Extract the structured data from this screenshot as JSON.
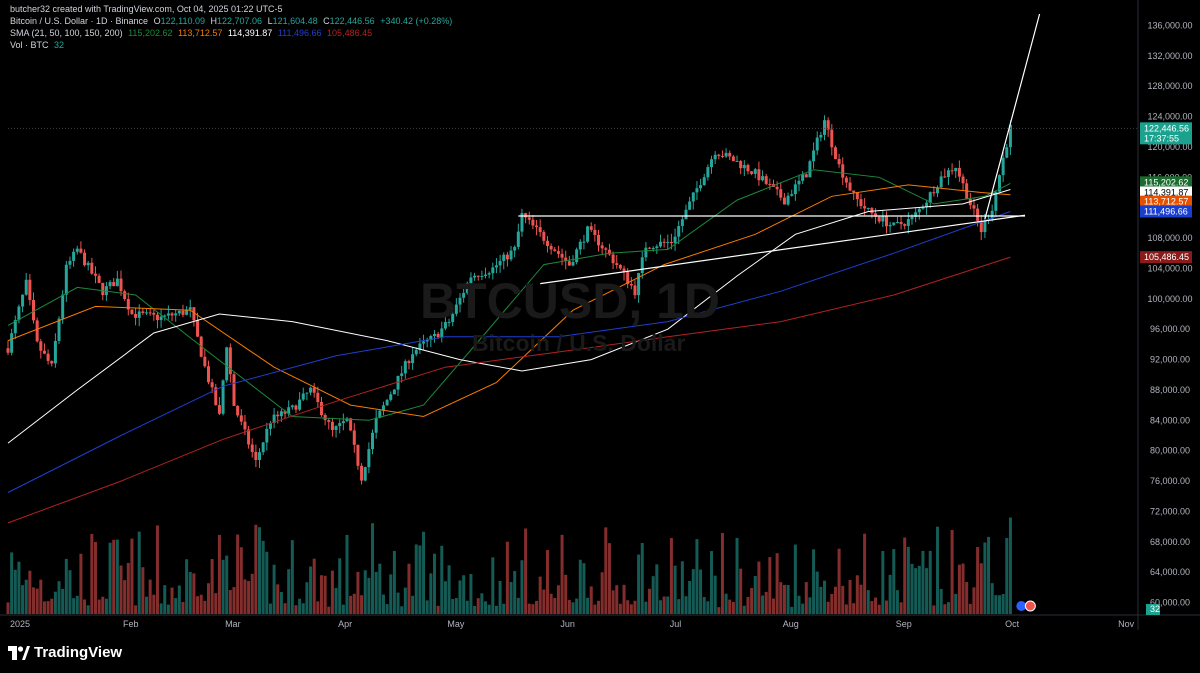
{
  "header": {
    "credit": "butcher32 created with TradingView.com, Oct 04, 2025 01:22 UTC-5",
    "symbol": "Bitcoin / U.S. Dollar · 1D · Binance",
    "ohlc": {
      "o_label": "O",
      "o": "122,110.09",
      "h_label": "H",
      "h": "122,707.06",
      "l_label": "L",
      "l": "121,604.48",
      "c_label": "C",
      "c": "122,446.56",
      "change": "+340.42 (+0.28%)"
    },
    "sma": {
      "label": "SMA (21, 50, 100, 150, 200)",
      "v21": "115,202.62",
      "v50": "113,712.57",
      "v100": "114,391.87",
      "v150": "111,496.66",
      "v200": "105,486.45"
    },
    "vol": {
      "label": "Vol · BTC",
      "value": "32"
    }
  },
  "watermark": {
    "symbol": "BTCUSD, 1D",
    "name": "Bitcoin / U.S. Dollar"
  },
  "brand": {
    "name": "TradingView"
  },
  "colors": {
    "up": "#26a69a",
    "down": "#ef5350",
    "sma21": "#1b8a3a",
    "sma50": "#f57c00",
    "sma100": "#ffffff",
    "sma150": "#1e3fd0",
    "sma200": "#b22222"
  },
  "price_tags": {
    "last": "122,446.56",
    "countdown": "17:37:55",
    "sma21": "115,202.62",
    "sma100": "114,391.87",
    "sma50": "113,712.57",
    "sma150": "111,496.66",
    "sma200": "105,486.45",
    "vol": "32"
  },
  "chart_data": {
    "type": "candlestick",
    "timeframe": "1D",
    "y_axis_ticks": [
      60000,
      64000,
      68000,
      72000,
      76000,
      80000,
      84000,
      88000,
      92000,
      96000,
      100000,
      104000,
      108000,
      112000,
      116000,
      120000,
      124000,
      128000,
      132000,
      136000
    ],
    "y_tick_labels": [
      "60,000.00",
      "64,000.00",
      "68,000.00",
      "72,000.00",
      "76,000.00",
      "80,000.00",
      "84,000.00",
      "88,000.00",
      "92,000.00",
      "96,000.00",
      "100,000.00",
      "104,000.00",
      "108,000.00",
      "112,000.00",
      "116,000.00",
      "120,000.00",
      "124,000.00",
      "128,000.00",
      "132,000.00",
      "136,000.00"
    ],
    "ylim": [
      58500,
      137500
    ],
    "x_axis_labels": [
      "2025",
      "Feb",
      "Mar",
      "Apr",
      "May",
      "Jun",
      "Jul",
      "Aug",
      "Sep",
      "Oct",
      "Nov"
    ],
    "x_axis_dates": [
      "2025-01-01",
      "2025-02-01",
      "2025-03-01",
      "2025-04-01",
      "2025-05-01",
      "2025-06-01",
      "2025-07-01",
      "2025-08-01",
      "2025-09-01",
      "2025-10-01",
      "2025-11-01"
    ],
    "xlim": [
      "2025-01-01",
      "2025-11-07"
    ],
    "price_path": [
      [
        "2025-01-01",
        93500
      ],
      [
        "2025-01-06",
        102000
      ],
      [
        "2025-01-09",
        94000
      ],
      [
        "2025-01-13",
        91000
      ],
      [
        "2025-01-17",
        104000
      ],
      [
        "2025-01-20",
        106500
      ],
      [
        "2025-01-27",
        101000
      ],
      [
        "2025-01-31",
        102500
      ],
      [
        "2025-02-04",
        98000
      ],
      [
        "2025-02-12",
        97500
      ],
      [
        "2025-02-20",
        98500
      ],
      [
        "2025-02-24",
        91000
      ],
      [
        "2025-02-28",
        84500
      ],
      [
        "2025-03-02",
        94000
      ],
      [
        "2025-03-04",
        86000
      ],
      [
        "2025-03-10",
        78500
      ],
      [
        "2025-03-14",
        84000
      ],
      [
        "2025-03-20",
        85500
      ],
      [
        "2025-03-25",
        88000
      ],
      [
        "2025-03-31",
        82500
      ],
      [
        "2025-04-04",
        84000
      ],
      [
        "2025-04-08",
        76500
      ],
      [
        "2025-04-12",
        84000
      ],
      [
        "2025-04-22",
        93000
      ],
      [
        "2025-04-28",
        95000
      ],
      [
        "2025-05-02",
        97000
      ],
      [
        "2025-05-08",
        103000
      ],
      [
        "2025-05-14",
        104000
      ],
      [
        "2025-05-20",
        106500
      ],
      [
        "2025-05-22",
        111000
      ],
      [
        "2025-05-28",
        108000
      ],
      [
        "2025-06-04",
        104500
      ],
      [
        "2025-06-09",
        109000
      ],
      [
        "2025-06-12",
        107500
      ],
      [
        "2025-06-17",
        104500
      ],
      [
        "2025-06-22",
        101000
      ],
      [
        "2025-06-25",
        107000
      ],
      [
        "2025-07-02",
        107500
      ],
      [
        "2025-07-10",
        115500
      ],
      [
        "2025-07-14",
        119500
      ],
      [
        "2025-07-20",
        118000
      ],
      [
        "2025-07-25",
        116500
      ],
      [
        "2025-08-02",
        113000
      ],
      [
        "2025-08-08",
        116500
      ],
      [
        "2025-08-13",
        123500
      ],
      [
        "2025-08-17",
        117500
      ],
      [
        "2025-08-21",
        113500
      ],
      [
        "2025-08-25",
        111500
      ],
      [
        "2025-09-01",
        109500
      ],
      [
        "2025-09-06",
        110500
      ],
      [
        "2025-09-10",
        113000
      ],
      [
        "2025-09-14",
        116000
      ],
      [
        "2025-09-18",
        117500
      ],
      [
        "2025-09-22",
        112500
      ],
      [
        "2025-09-25",
        109000
      ],
      [
        "2025-09-28",
        112000
      ],
      [
        "2025-10-01",
        118500
      ],
      [
        "2025-10-03",
        122500
      ]
    ],
    "series": [
      {
        "name": "SMA 21",
        "last": 115202.62,
        "values": [
          [
            "2025-01-01",
            96500
          ],
          [
            "2025-01-20",
            101500
          ],
          [
            "2025-02-05",
            100500
          ],
          [
            "2025-02-25",
            93000
          ],
          [
            "2025-03-20",
            84500
          ],
          [
            "2025-04-10",
            84000
          ],
          [
            "2025-04-25",
            86000
          ],
          [
            "2025-05-12",
            95500
          ],
          [
            "2025-05-28",
            104500
          ],
          [
            "2025-06-15",
            106000
          ],
          [
            "2025-07-01",
            106500
          ],
          [
            "2025-07-20",
            113000
          ],
          [
            "2025-08-10",
            117000
          ],
          [
            "2025-08-28",
            116000
          ],
          [
            "2025-09-12",
            112500
          ],
          [
            "2025-09-26",
            113500
          ],
          [
            "2025-10-03",
            115202
          ]
        ]
      },
      {
        "name": "SMA 50",
        "last": 113712.57,
        "values": [
          [
            "2025-01-01",
            94500
          ],
          [
            "2025-01-25",
            99000
          ],
          [
            "2025-02-20",
            98500
          ],
          [
            "2025-03-15",
            91000
          ],
          [
            "2025-04-05",
            86000
          ],
          [
            "2025-04-25",
            84500
          ],
          [
            "2025-05-15",
            89000
          ],
          [
            "2025-06-05",
            98500
          ],
          [
            "2025-06-30",
            104500
          ],
          [
            "2025-07-25",
            108500
          ],
          [
            "2025-08-15",
            113500
          ],
          [
            "2025-09-05",
            115000
          ],
          [
            "2025-09-25",
            114000
          ],
          [
            "2025-10-03",
            113712
          ]
        ]
      },
      {
        "name": "SMA 100",
        "last": 114391.87,
        "values": [
          [
            "2025-01-01",
            81000
          ],
          [
            "2025-01-20",
            88000
          ],
          [
            "2025-02-10",
            95500
          ],
          [
            "2025-02-28",
            98000
          ],
          [
            "2025-03-20",
            97000
          ],
          [
            "2025-04-15",
            94500
          ],
          [
            "2025-05-05",
            92000
          ],
          [
            "2025-05-22",
            90500
          ],
          [
            "2025-06-10",
            92000
          ],
          [
            "2025-07-01",
            96000
          ],
          [
            "2025-07-20",
            103000
          ],
          [
            "2025-08-05",
            108500
          ],
          [
            "2025-08-25",
            111500
          ],
          [
            "2025-09-20",
            112500
          ],
          [
            "2025-10-03",
            114392
          ]
        ]
      },
      {
        "name": "SMA 150",
        "last": 111496.66,
        "values": [
          [
            "2025-01-01",
            74500
          ],
          [
            "2025-02-01",
            82000
          ],
          [
            "2025-03-01",
            88500
          ],
          [
            "2025-04-01",
            92500
          ],
          [
            "2025-05-01",
            95000
          ],
          [
            "2025-06-01",
            95000
          ],
          [
            "2025-07-01",
            97000
          ],
          [
            "2025-08-01",
            101000
          ],
          [
            "2025-09-01",
            106000
          ],
          [
            "2025-10-03",
            111497
          ]
        ]
      },
      {
        "name": "SMA 200",
        "last": 105486.45,
        "values": [
          [
            "2025-01-01",
            70500
          ],
          [
            "2025-02-01",
            76000
          ],
          [
            "2025-03-01",
            81500
          ],
          [
            "2025-04-01",
            86500
          ],
          [
            "2025-05-01",
            91000
          ],
          [
            "2025-06-01",
            93000
          ],
          [
            "2025-07-01",
            95000
          ],
          [
            "2025-08-01",
            97000
          ],
          [
            "2025-09-01",
            100500
          ],
          [
            "2025-10-03",
            105486
          ]
        ]
      }
    ],
    "trendlines": [
      {
        "from": [
          "2025-05-21",
          110900
        ],
        "to": [
          "2025-10-07",
          110900
        ]
      },
      {
        "from": [
          "2025-05-27",
          102000
        ],
        "to": [
          "2025-10-07",
          111000
        ]
      },
      {
        "from": [
          "2025-09-26",
          110500
        ],
        "to": [
          "2025-10-11",
          137500
        ]
      }
    ],
    "volume": {
      "latest": 32,
      "axis_label": "32"
    }
  }
}
